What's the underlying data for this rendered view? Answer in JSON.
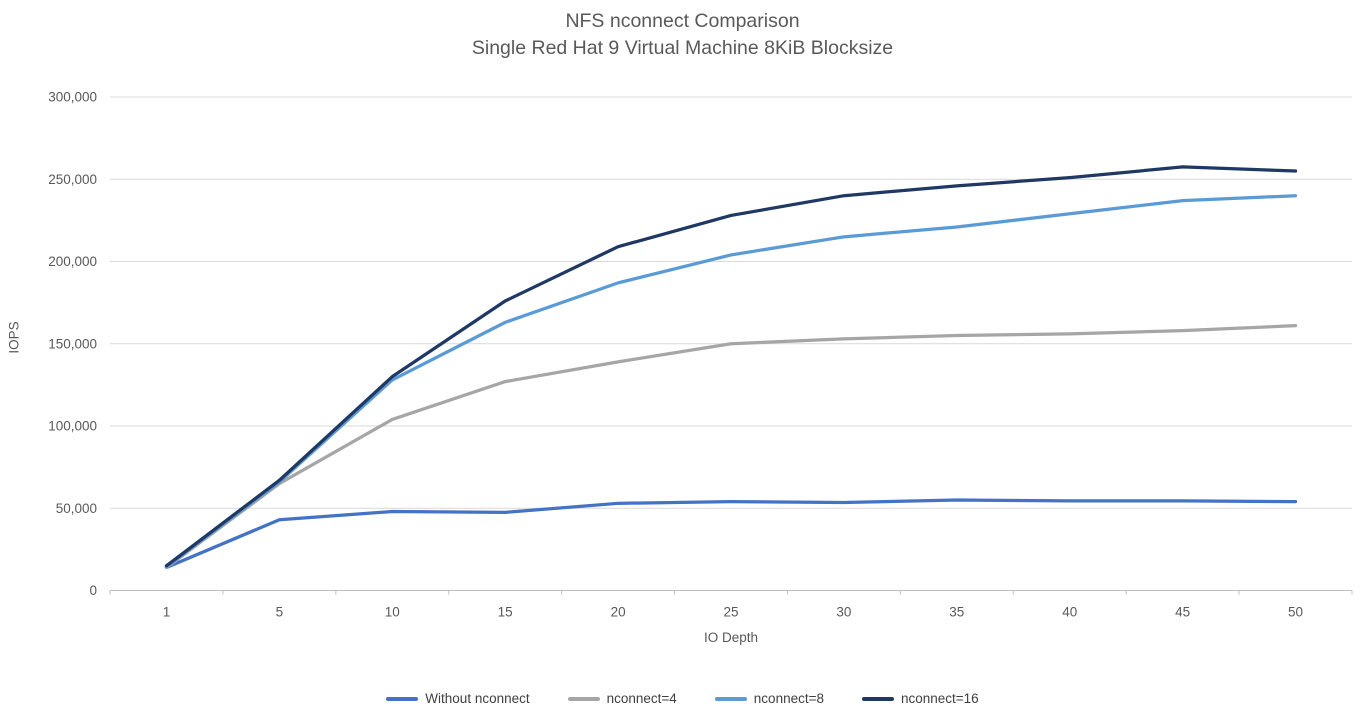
{
  "chart_data": {
    "type": "line",
    "title": "NFS nconnect Comparison",
    "subtitle": "Single Red Hat 9 Virtual Machine 8KiB Blocksize",
    "xlabel": "IO Depth",
    "ylabel": "IOPS",
    "categories": [
      "1",
      "5",
      "10",
      "15",
      "20",
      "25",
      "30",
      "35",
      "40",
      "45",
      "50"
    ],
    "ylim": [
      0,
      300000
    ],
    "ytick_step": 50000,
    "ytick_labels": [
      "0",
      "50,000",
      "100,000",
      "150,000",
      "200,000",
      "250,000",
      "300,000"
    ],
    "grid": true,
    "legend_position": "bottom",
    "series": [
      {
        "name": "Without nconnect",
        "color": "#4472C4",
        "values": [
          14000,
          43000,
          48000,
          47500,
          53000,
          54000,
          53500,
          55000,
          54500,
          54500,
          54000
        ]
      },
      {
        "name": "nconnect=4",
        "color": "#A6A6A6",
        "values": [
          14000,
          65000,
          104000,
          127000,
          139000,
          150000,
          153000,
          155000,
          156000,
          158000,
          161000
        ]
      },
      {
        "name": "nconnect=8",
        "color": "#5B9BD5",
        "values": [
          14500,
          66000,
          128000,
          163000,
          187000,
          204000,
          215000,
          221000,
          229000,
          237000,
          240000
        ]
      },
      {
        "name": "nconnect=16",
        "color": "#1F3864",
        "values": [
          15000,
          67000,
          130000,
          176000,
          209000,
          228000,
          240000,
          246000,
          251000,
          257500,
          255000
        ]
      }
    ],
    "colors": {
      "gridline": "#D9D9D9",
      "axis": "#BFBFBF",
      "tick_text": "#595959",
      "title_text": "#595959",
      "legend_text": "#404040"
    }
  }
}
